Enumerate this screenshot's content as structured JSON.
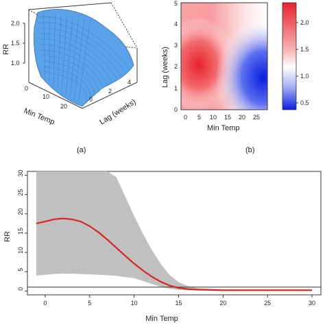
{
  "panels": {
    "a_label": "(a)",
    "b_label": "(b)"
  },
  "panel_a": {
    "zlabel": "RR",
    "xlabel": "Min Temp",
    "ylabel": "Lag (weeks)",
    "z_ticks": [
      "1.0",
      "1.5",
      "2.0"
    ],
    "x_ticks": [
      "0",
      "10",
      "20"
    ],
    "y_ticks": [
      "0",
      "2",
      "4"
    ],
    "surface_color": "#5aa3e8"
  },
  "panel_b": {
    "xlabel": "Min Temp",
    "ylabel": "Lag (weeks)",
    "x_ticks": [
      "0",
      "5",
      "10",
      "15",
      "20",
      "25"
    ],
    "y_ticks": [
      "0",
      "1",
      "2",
      "3",
      "4",
      "5"
    ],
    "legend_ticks": [
      "2.0",
      "1.5",
      "1.0",
      "0.5"
    ],
    "colors": {
      "high": "#e8222b",
      "mid": "#ffffff",
      "low": "#0a1ee0"
    }
  },
  "chart_data": [
    {
      "type": "line",
      "panel": "c",
      "xlabel": "Min Temp",
      "ylabel": "RR",
      "xlim": [
        -2,
        31
      ],
      "ylim": [
        -1,
        31
      ],
      "x_ticks": [
        "0",
        "5",
        "10",
        "15",
        "20",
        "25",
        "30"
      ],
      "y_ticks": [
        "0",
        "5",
        "10",
        "15",
        "20",
        "25",
        "30"
      ],
      "reference_line": 1,
      "line_color": "#d9241f",
      "band_color": "#c0c0c0",
      "x": [
        -1,
        0,
        1,
        2,
        3,
        4,
        5,
        6,
        7,
        8,
        9,
        10,
        11,
        12,
        13,
        14,
        15,
        16,
        17,
        18,
        19,
        20,
        22,
        24,
        26,
        28,
        30
      ],
      "y": [
        17.5,
        18.0,
        18.6,
        18.8,
        18.6,
        18.0,
        16.8,
        15.2,
        13.3,
        11.2,
        9.1,
        7.1,
        5.3,
        3.7,
        2.4,
        1.4,
        0.8,
        0.5,
        0.35,
        0.3,
        0.25,
        0.2,
        0.2,
        0.2,
        0.2,
        0.2,
        0.2
      ],
      "upper": [
        31,
        31,
        31,
        31,
        31,
        31,
        31,
        31,
        31,
        29.5,
        24.5,
        19.5,
        14.8,
        10.6,
        7.0,
        4.1,
        2.3,
        1.3,
        0.8,
        0.6,
        0.5,
        0.45,
        0.4,
        0.4,
        0.4,
        0.4,
        0.4
      ],
      "lower": [
        4.0,
        4.2,
        4.4,
        4.5,
        4.5,
        4.4,
        4.3,
        4.2,
        4.1,
        3.9,
        3.6,
        3.3,
        2.6,
        1.8,
        1.1,
        0.6,
        0.3,
        0.2,
        0.1,
        0.1,
        0.1,
        0.05,
        0.05,
        0.05,
        0.05,
        0.05,
        0.05
      ]
    }
  ]
}
